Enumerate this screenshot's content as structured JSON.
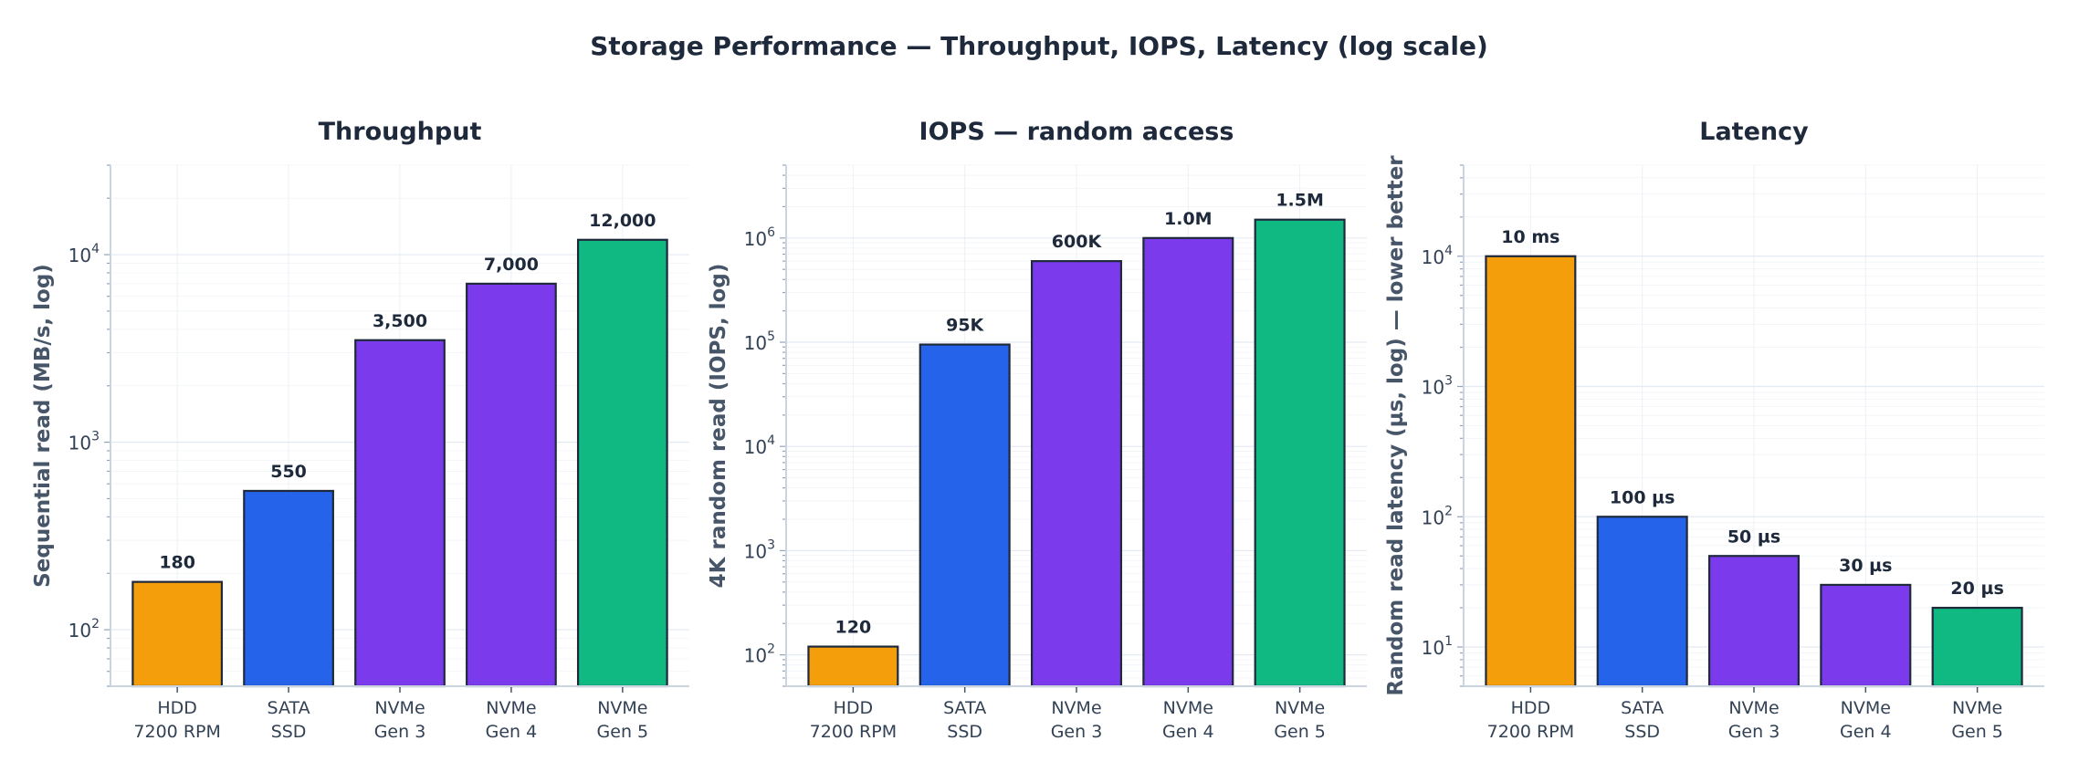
{
  "suptitle": "Storage Performance — Throughput, IOPS, Latency (log scale)",
  "colors": {
    "hdd": "#f59e0b",
    "sata": "#2563eb",
    "nvme34": "#7c3aed",
    "nvme5": "#10b981",
    "edge": "#1e293b",
    "text": "#1e293b",
    "axis_label": "#475569",
    "grid": "#e2e8f0"
  },
  "chart_data": [
    {
      "type": "bar",
      "title": "Throughput",
      "ylabel": "Sequential read (MB/s, log)",
      "yscale": "log",
      "ylim": [
        50,
        30000
      ],
      "yticks": [
        {
          "value": 100,
          "exp": "2"
        },
        {
          "value": 1000,
          "exp": "3"
        },
        {
          "value": 10000,
          "exp": "4"
        }
      ],
      "grid": true,
      "categories": [
        [
          "HDD",
          "7200 RPM"
        ],
        [
          "SATA",
          "SSD"
        ],
        [
          "NVMe",
          "Gen 3"
        ],
        [
          "NVMe",
          "Gen 4"
        ],
        [
          "NVMe",
          "Gen 5"
        ]
      ],
      "values": [
        180,
        550,
        3500,
        7000,
        12000
      ],
      "labels": [
        "180",
        "550",
        "3,500",
        "7,000",
        "12,000"
      ],
      "bar_colors": [
        "#f59e0b",
        "#2563eb",
        "#7c3aed",
        "#7c3aed",
        "#10b981"
      ]
    },
    {
      "type": "bar",
      "title": "IOPS — random access",
      "ylabel": "4K random read (IOPS, log)",
      "yscale": "log",
      "ylim": [
        50,
        5000000
      ],
      "yticks": [
        {
          "value": 100,
          "exp": "2"
        },
        {
          "value": 1000,
          "exp": "3"
        },
        {
          "value": 10000,
          "exp": "4"
        },
        {
          "value": 100000,
          "exp": "5"
        },
        {
          "value": 1000000,
          "exp": "6"
        }
      ],
      "grid": true,
      "categories": [
        [
          "HDD",
          "7200 RPM"
        ],
        [
          "SATA",
          "SSD"
        ],
        [
          "NVMe",
          "Gen 3"
        ],
        [
          "NVMe",
          "Gen 4"
        ],
        [
          "NVMe",
          "Gen 5"
        ]
      ],
      "values": [
        120,
        95000,
        600000,
        1000000,
        1500000
      ],
      "labels": [
        "120",
        "95K",
        "600K",
        "1.0M",
        "1.5M"
      ],
      "bar_colors": [
        "#f59e0b",
        "#2563eb",
        "#7c3aed",
        "#7c3aed",
        "#10b981"
      ]
    },
    {
      "type": "bar",
      "title": "Latency",
      "ylabel": "Random read latency (µs, log) — lower better",
      "yscale": "log",
      "ylim": [
        5,
        50000
      ],
      "yticks": [
        {
          "value": 10,
          "exp": "1"
        },
        {
          "value": 100,
          "exp": "2"
        },
        {
          "value": 1000,
          "exp": "3"
        },
        {
          "value": 10000,
          "exp": "4"
        }
      ],
      "grid": true,
      "categories": [
        [
          "HDD",
          "7200 RPM"
        ],
        [
          "SATA",
          "SSD"
        ],
        [
          "NVMe",
          "Gen 3"
        ],
        [
          "NVMe",
          "Gen 4"
        ],
        [
          "NVMe",
          "Gen 5"
        ]
      ],
      "values": [
        10000,
        100,
        50,
        30,
        20
      ],
      "labels": [
        "10 ms",
        "100 µs",
        "50 µs",
        "30 µs",
        "20 µs"
      ],
      "bar_colors": [
        "#f59e0b",
        "#2563eb",
        "#7c3aed",
        "#7c3aed",
        "#10b981"
      ]
    }
  ]
}
